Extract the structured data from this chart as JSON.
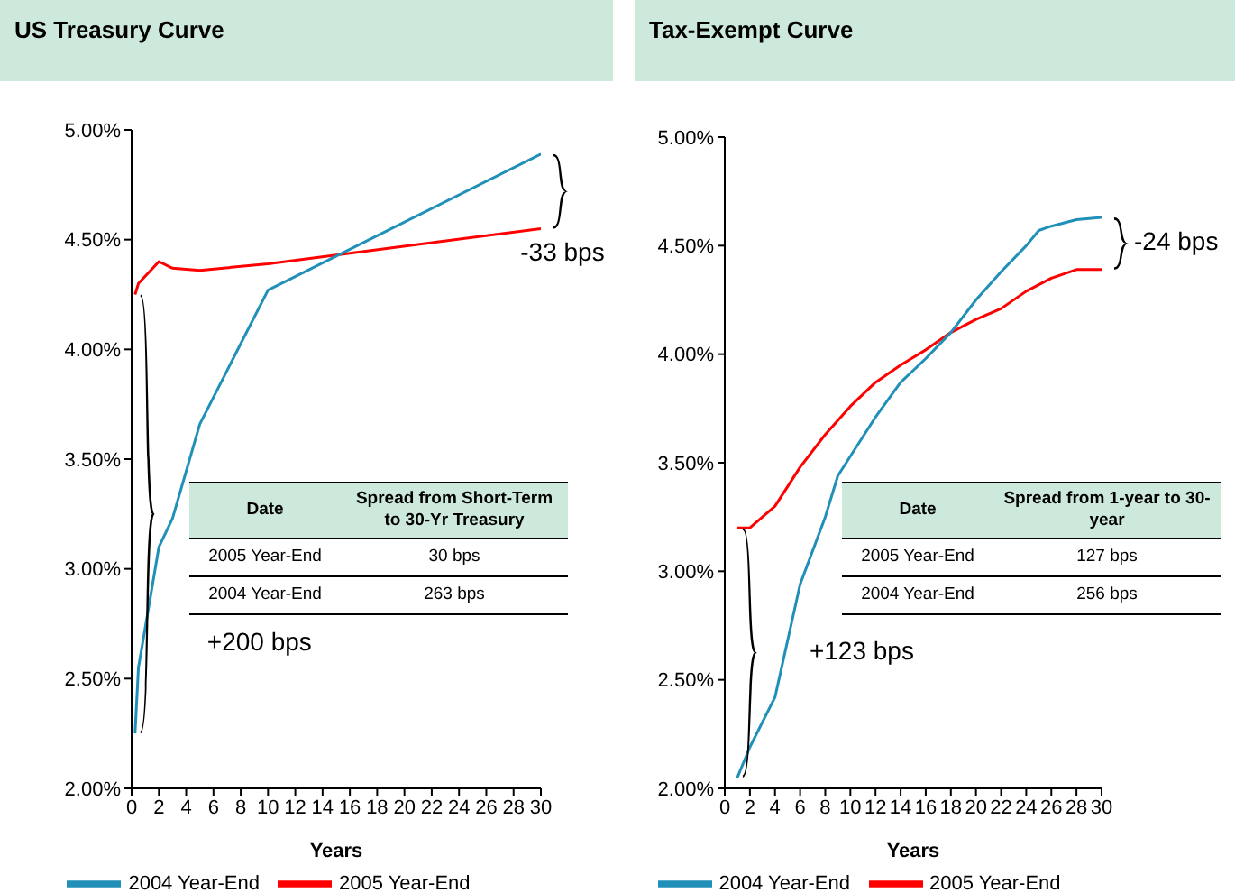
{
  "chart_data": [
    {
      "type": "line",
      "title": "US Treasury Curve",
      "xlabel": "Years",
      "xlim": [
        0,
        30
      ],
      "xticks": [
        0,
        2,
        4,
        6,
        8,
        10,
        12,
        14,
        16,
        18,
        20,
        22,
        24,
        26,
        28,
        30
      ],
      "ylim": [
        2,
        5
      ],
      "yticks": [
        {
          "value": 2,
          "label": "2.00%"
        },
        {
          "value": 2.5,
          "label": "2.50%"
        },
        {
          "value": 3,
          "label": "3.00%"
        },
        {
          "value": 3.5,
          "label": "3.50%"
        },
        {
          "value": 4,
          "label": "4.00%"
        },
        {
          "value": 4.5,
          "label": "4.50%"
        },
        {
          "value": 5,
          "label": "5.00%"
        }
      ],
      "legend": "bottom",
      "marker": "none",
      "line_style": "solid",
      "series": [
        {
          "name": "2005 Year-End",
          "color": "#ff0000",
          "x": [
            0.25,
            0.5,
            2,
            3,
            5,
            10,
            30
          ],
          "values": [
            4.25,
            4.3,
            4.4,
            4.37,
            4.36,
            4.39,
            4.55
          ]
        },
        {
          "name": "2004 Year-End",
          "color": "#2090b8",
          "x": [
            0.25,
            0.5,
            2,
            3,
            5,
            10,
            30
          ],
          "values": [
            2.25,
            2.55,
            3.1,
            3.23,
            3.66,
            4.27,
            4.89
          ]
        }
      ],
      "annotations": [
        "+200 bps",
        "-33 bps",
        "Date",
        "Spread from Short-Term to 30-Yr Treasury",
        "2005 Year-End",
        "30 bps",
        "2004 Year-End",
        "263 bps"
      ]
    },
    {
      "type": "line",
      "title": "Tax-Exempt Curve",
      "xlabel": "Years",
      "xlim": [
        0,
        30
      ],
      "xticks": [
        0,
        2,
        4,
        6,
        8,
        10,
        12,
        14,
        16,
        18,
        20,
        22,
        24,
        26,
        28,
        30
      ],
      "ylim": [
        2,
        5
      ],
      "yticks": [
        {
          "value": 2,
          "label": "2.00%"
        },
        {
          "value": 2.5,
          "label": "2.50%"
        },
        {
          "value": 3,
          "label": "3.00%"
        },
        {
          "value": 3.5,
          "label": "3.50%"
        },
        {
          "value": 4,
          "label": "4.00%"
        },
        {
          "value": 4.5,
          "label": "4.50%"
        },
        {
          "value": 5,
          "label": "5.00%"
        }
      ],
      "legend": "bottom",
      "marker": "none",
      "line_style": "solid",
      "series": [
        {
          "name": "2005 Year-End",
          "color": "#ff0000",
          "x": [
            1,
            2,
            4,
            6,
            8,
            10,
            12,
            14,
            16,
            18,
            20,
            22,
            24,
            26,
            28,
            30
          ],
          "values": [
            3.2,
            3.2,
            3.3,
            3.48,
            3.63,
            3.76,
            3.87,
            3.95,
            4.02,
            4.1,
            4.16,
            4.21,
            4.29,
            4.35,
            4.39,
            4.39
          ]
        },
        {
          "name": "2004 Year-End",
          "color": "#2090b8",
          "x": [
            1,
            2,
            4,
            6,
            8,
            9,
            10,
            12,
            14,
            16,
            18,
            20,
            22,
            24,
            25,
            26,
            28,
            30
          ],
          "values": [
            2.05,
            2.19,
            2.42,
            2.94,
            3.25,
            3.44,
            3.53,
            3.71,
            3.87,
            3.98,
            4.1,
            4.25,
            4.38,
            4.5,
            4.57,
            4.59,
            4.62,
            4.63
          ]
        }
      ],
      "annotations": [
        "+123 bps",
        "-24 bps",
        "Date",
        "Spread from 1-year to 30-year",
        "2005 Year-End",
        "127 bps",
        "2004 Year-End",
        "256 bps"
      ]
    }
  ]
}
